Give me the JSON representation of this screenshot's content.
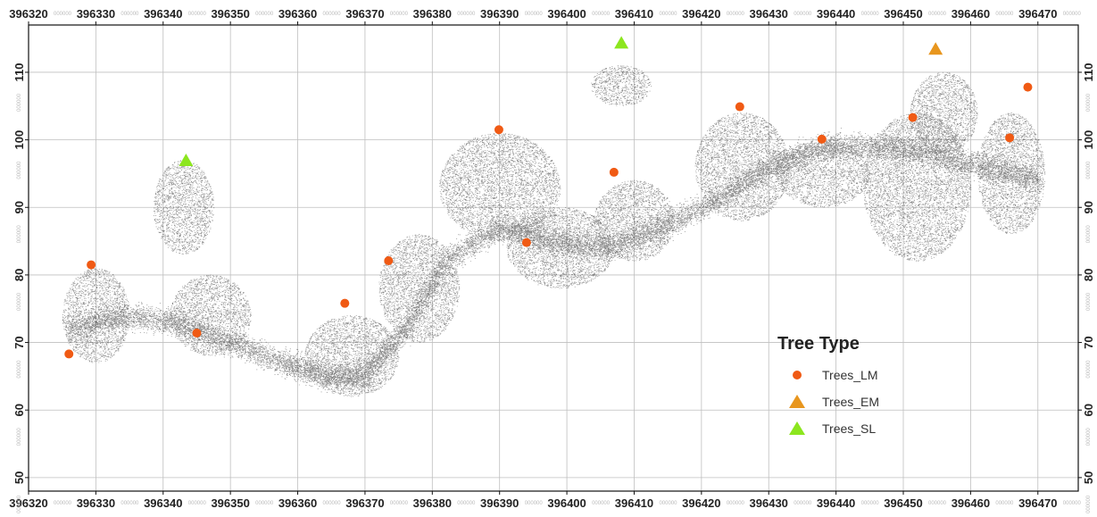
{
  "chart_data": {
    "type": "scatter",
    "title": "",
    "xlabel": "",
    "ylabel": "",
    "xlim": [
      396320,
      396476
    ],
    "ylim": [
      48,
      117
    ],
    "grid": true,
    "x_ticks": [
      396320,
      396330,
      396340,
      396350,
      396360,
      396370,
      396380,
      396390,
      396400,
      396410,
      396420,
      396430,
      396440,
      396450,
      396460,
      396470
    ],
    "x_tick_labels": [
      "396320",
      "396330",
      "396340",
      "396350",
      "396360",
      "396370",
      "396380",
      "396390",
      "396400",
      "396410",
      "396420",
      "396430",
      "396440",
      "396450",
      "396460",
      "396470"
    ],
    "y_ticks": [
      50,
      60,
      70,
      80,
      90,
      100,
      110
    ],
    "y_tick_labels": [
      "50",
      "60",
      "70",
      "80",
      "90",
      "100",
      "110"
    ],
    "tick_suffix": "000000",
    "legend": {
      "title": "Tree Type",
      "position": "bottom-right",
      "entries": [
        {
          "label": "Trees_LM",
          "marker": "circle",
          "color": "#f05a14"
        },
        {
          "label": "Trees_EM",
          "marker": "triangle",
          "color": "#e8961e"
        },
        {
          "label": "Trees_SL",
          "marker": "triangle",
          "color": "#8ce61e"
        }
      ]
    },
    "series": [
      {
        "name": "Trees_LM",
        "marker": "circle",
        "color": "#f05a14",
        "points": [
          {
            "x": 396326.0,
            "y": 68.3
          },
          {
            "x": 396329.3,
            "y": 81.5
          },
          {
            "x": 396345.0,
            "y": 71.4
          },
          {
            "x": 396367.0,
            "y": 75.8
          },
          {
            "x": 396373.5,
            "y": 82.1
          },
          {
            "x": 396389.9,
            "y": 101.5
          },
          {
            "x": 396394.0,
            "y": 84.8
          },
          {
            "x": 396407.0,
            "y": 95.2
          },
          {
            "x": 396425.7,
            "y": 104.9
          },
          {
            "x": 396437.9,
            "y": 100.1
          },
          {
            "x": 396451.4,
            "y": 103.3
          },
          {
            "x": 396465.8,
            "y": 100.3
          },
          {
            "x": 396468.5,
            "y": 107.8
          }
        ]
      },
      {
        "name": "Trees_EM",
        "marker": "triangle",
        "color": "#e8961e",
        "points": [
          {
            "x": 396454.8,
            "y": 113.4
          }
        ]
      },
      {
        "name": "Trees_SL",
        "marker": "triangle",
        "color": "#8ce61e",
        "points": [
          {
            "x": 396343.4,
            "y": 96.9
          },
          {
            "x": 396408.1,
            "y": 114.3
          }
        ]
      }
    ],
    "point_cloud": {
      "description_color": "#1e1e1e",
      "ridge": [
        {
          "x": 396326,
          "y": 72
        },
        {
          "x": 396334,
          "y": 74
        },
        {
          "x": 396342,
          "y": 73
        },
        {
          "x": 396350,
          "y": 70
        },
        {
          "x": 396358,
          "y": 67
        },
        {
          "x": 396364,
          "y": 65
        },
        {
          "x": 396370,
          "y": 65
        },
        {
          "x": 396376,
          "y": 72
        },
        {
          "x": 396382,
          "y": 82
        },
        {
          "x": 396390,
          "y": 87
        },
        {
          "x": 396398,
          "y": 85
        },
        {
          "x": 396406,
          "y": 84
        },
        {
          "x": 396414,
          "y": 87
        },
        {
          "x": 396422,
          "y": 91
        },
        {
          "x": 396430,
          "y": 96
        },
        {
          "x": 396438,
          "y": 99
        },
        {
          "x": 396446,
          "y": 99
        },
        {
          "x": 396454,
          "y": 98
        },
        {
          "x": 396462,
          "y": 96
        },
        {
          "x": 396470,
          "y": 94
        }
      ],
      "crowns": [
        {
          "x": 396330,
          "y": 74,
          "rx": 5,
          "ry": 7
        },
        {
          "x": 396343,
          "y": 90,
          "rx": 4.5,
          "ry": 7
        },
        {
          "x": 396347,
          "y": 74,
          "rx": 6,
          "ry": 6
        },
        {
          "x": 396368,
          "y": 68,
          "rx": 7,
          "ry": 6
        },
        {
          "x": 396378,
          "y": 78,
          "rx": 6,
          "ry": 8
        },
        {
          "x": 396390,
          "y": 93,
          "rx": 9,
          "ry": 8
        },
        {
          "x": 396399,
          "y": 84,
          "rx": 8,
          "ry": 6
        },
        {
          "x": 396408,
          "y": 108,
          "rx": 4.5,
          "ry": 3
        },
        {
          "x": 396410,
          "y": 88,
          "rx": 6,
          "ry": 6
        },
        {
          "x": 396426,
          "y": 96,
          "rx": 7,
          "ry": 8
        },
        {
          "x": 396438,
          "y": 95,
          "rx": 7,
          "ry": 5
        },
        {
          "x": 396452,
          "y": 93,
          "rx": 8,
          "ry": 11
        },
        {
          "x": 396456,
          "y": 104,
          "rx": 5,
          "ry": 6
        },
        {
          "x": 396466,
          "y": 95,
          "rx": 5,
          "ry": 9
        }
      ]
    }
  }
}
